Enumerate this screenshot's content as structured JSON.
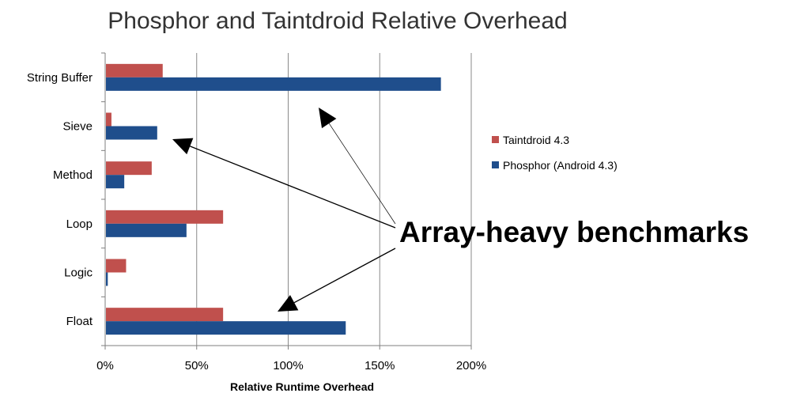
{
  "chart_data": {
    "type": "bar",
    "orientation": "horizontal",
    "title": "Phosphor and Taintdroid Relative Overhead",
    "xlabel": "Relative Runtime Overhead",
    "ylabel": "",
    "categories": [
      "String Buffer",
      "Sieve",
      "Method",
      "Loop",
      "Logic",
      "Float"
    ],
    "series": [
      {
        "name": "Taintdroid 4.3",
        "color": "#c0504d",
        "values": [
          31,
          3,
          25,
          64,
          11,
          64
        ]
      },
      {
        "name": "Phosphor (Android 4.3)",
        "color": "#1f4e8c",
        "values": [
          183,
          28,
          10,
          44,
          1,
          131
        ]
      }
    ],
    "xlim": [
      0,
      200
    ],
    "xticks": [
      "0%",
      "50%",
      "100%",
      "150%",
      "200%"
    ],
    "grid": true,
    "legend_position": "right",
    "annotation": {
      "text": "Array-heavy benchmarks",
      "arrow_targets": [
        "String Buffer",
        "Sieve",
        "Float"
      ]
    }
  }
}
